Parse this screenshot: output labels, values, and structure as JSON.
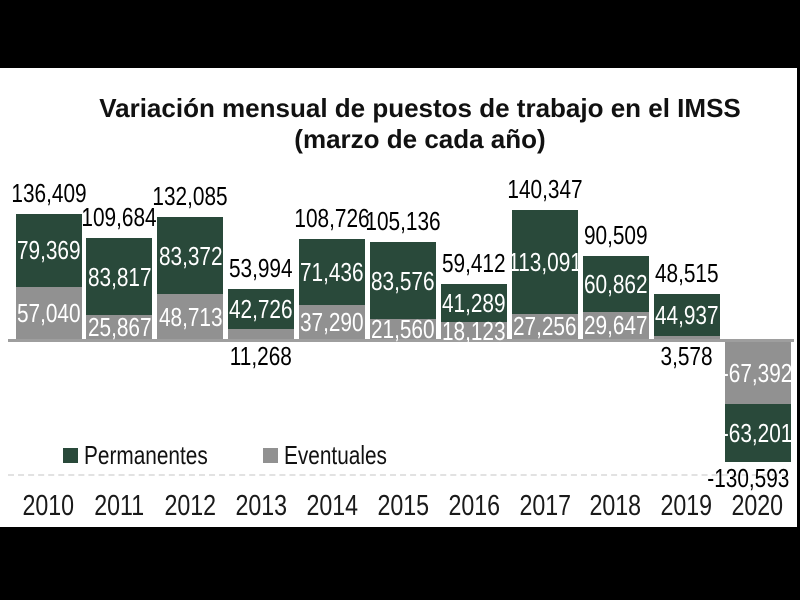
{
  "title": {
    "line1": "Variación mensual de puestos de trabajo en el IMSS",
    "line2": "(marzo de cada año)"
  },
  "legend": {
    "items": [
      {
        "label": "Permanentes",
        "color": "#29493a"
      },
      {
        "label": "Eventuales",
        "color": "#919191"
      }
    ]
  },
  "chart_data": {
    "type": "bar",
    "stacked": true,
    "title": "Variación mensual de puestos de trabajo en el IMSS (marzo de cada año)",
    "categories": [
      "2010",
      "2011",
      "2012",
      "2013",
      "2014",
      "2015",
      "2016",
      "2017",
      "2018",
      "2019",
      "2020"
    ],
    "series": [
      {
        "name": "Permanentes",
        "color": "#29493a",
        "values": [
          79369,
          83817,
          83372,
          42726,
          71436,
          83576,
          41289,
          113091,
          60862,
          44937,
          -63201
        ]
      },
      {
        "name": "Eventuales",
        "color": "#919191",
        "values": [
          57040,
          25867,
          48713,
          11268,
          37290,
          21560,
          18123,
          27256,
          29647,
          3578,
          -67392
        ]
      }
    ],
    "totals": [
      136409,
      109684,
      132085,
      53994,
      108726,
      105136,
      59412,
      140347,
      90509,
      48515,
      -130593
    ],
    "number_format": "en-US-comma",
    "value_label_color_inside": "#ffffff",
    "value_label_color_outside": "#000000",
    "axis_color": "#9e9e9e",
    "baseline": 0,
    "grid": false,
    "legend_position": "bottom-left",
    "letterbox_color": "#000000",
    "background_color": "#ffffff"
  }
}
